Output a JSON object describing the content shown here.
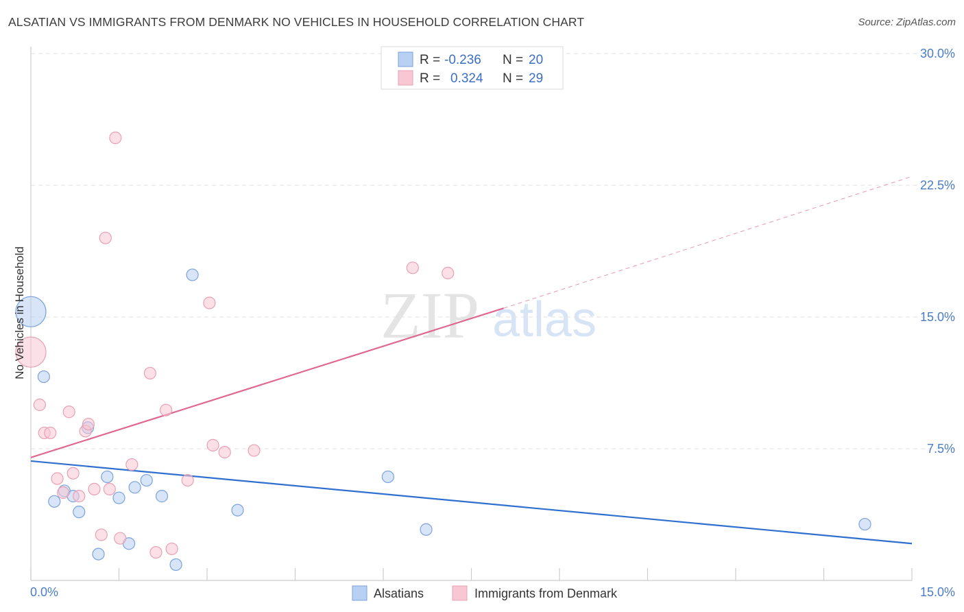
{
  "title": "ALSATIAN VS IMMIGRANTS FROM DENMARK NO VEHICLES IN HOUSEHOLD CORRELATION CHART",
  "source": "Source: ZipAtlas.com",
  "watermark": {
    "zip": "ZIP",
    "atlas": "atlas"
  },
  "colors": {
    "blue_fill": "#b8d0f2",
    "blue_stroke": "#7aa2dd",
    "blue_line": "#2f6fd0",
    "pink_fill": "#f7c7d3",
    "pink_stroke": "#e8a0b4",
    "pink_line": "#e06890",
    "tick_text": "#4a7cc7"
  },
  "legend": {
    "r_label": "R =",
    "n_label": "N =",
    "rows": [
      {
        "series": "Alsatians",
        "r": "-0.236",
        "n": "20"
      },
      {
        "series": "Immigrants from Denmark",
        "r": "0.324",
        "n": "29"
      }
    ]
  },
  "chart_data": {
    "type": "scatter",
    "title": "ALSATIAN VS IMMIGRANTS FROM DENMARK NO VEHICLES IN HOUSEHOLD CORRELATION CHART",
    "xlabel": "",
    "ylabel": "No Vehicles in Household",
    "xlim": [
      0,
      15
    ],
    "ylim": [
      0,
      30
    ],
    "x_tick_labels": [
      "0.0%",
      "15.0%"
    ],
    "y_ticks": [
      7.5,
      15.0,
      22.5,
      30.0
    ],
    "y_tick_labels": [
      "7.5%",
      "15.0%",
      "22.5%",
      "30.0%"
    ],
    "grid": true,
    "legend_position": "top-center",
    "series": [
      {
        "name": "Alsatians",
        "color": "#b8d0f2",
        "points": [
          {
            "x": 0.0,
            "y": 15.3,
            "size": "large"
          },
          {
            "x": 0.22,
            "y": 11.6
          },
          {
            "x": 0.4,
            "y": 4.5
          },
          {
            "x": 0.57,
            "y": 5.1
          },
          {
            "x": 0.72,
            "y": 4.8
          },
          {
            "x": 0.82,
            "y": 3.9
          },
          {
            "x": 0.97,
            "y": 8.7
          },
          {
            "x": 1.15,
            "y": 1.5
          },
          {
            "x": 1.3,
            "y": 5.9
          },
          {
            "x": 1.5,
            "y": 4.7
          },
          {
            "x": 1.67,
            "y": 2.1
          },
          {
            "x": 1.77,
            "y": 5.3
          },
          {
            "x": 1.97,
            "y": 5.7
          },
          {
            "x": 2.23,
            "y": 4.8
          },
          {
            "x": 2.47,
            "y": 0.9
          },
          {
            "x": 2.75,
            "y": 17.4
          },
          {
            "x": 3.52,
            "y": 4.0
          },
          {
            "x": 6.08,
            "y": 5.9
          },
          {
            "x": 6.73,
            "y": 2.9
          },
          {
            "x": 14.2,
            "y": 3.2
          }
        ],
        "trend": {
          "x": [
            0,
            15
          ],
          "y": [
            6.8,
            2.1
          ]
        }
      },
      {
        "name": "Immigrants from Denmark",
        "color": "#f7c7d3",
        "points": [
          {
            "x": 0.0,
            "y": 13.0,
            "size": "large"
          },
          {
            "x": 0.15,
            "y": 10.0
          },
          {
            "x": 0.23,
            "y": 8.4
          },
          {
            "x": 0.33,
            "y": 8.4
          },
          {
            "x": 0.45,
            "y": 5.8
          },
          {
            "x": 0.55,
            "y": 5.0
          },
          {
            "x": 0.65,
            "y": 9.6
          },
          {
            "x": 0.72,
            "y": 6.1
          },
          {
            "x": 0.82,
            "y": 4.8
          },
          {
            "x": 0.93,
            "y": 8.5
          },
          {
            "x": 0.98,
            "y": 8.9
          },
          {
            "x": 1.08,
            "y": 5.2
          },
          {
            "x": 1.2,
            "y": 2.6
          },
          {
            "x": 1.27,
            "y": 19.5
          },
          {
            "x": 1.34,
            "y": 5.2
          },
          {
            "x": 1.44,
            "y": 25.2
          },
          {
            "x": 1.52,
            "y": 2.4
          },
          {
            "x": 1.72,
            "y": 6.6
          },
          {
            "x": 2.03,
            "y": 11.8
          },
          {
            "x": 2.13,
            "y": 1.6
          },
          {
            "x": 2.3,
            "y": 9.7
          },
          {
            "x": 2.4,
            "y": 1.8
          },
          {
            "x": 2.67,
            "y": 5.7
          },
          {
            "x": 3.04,
            "y": 15.8
          },
          {
            "x": 3.1,
            "y": 7.7
          },
          {
            "x": 3.3,
            "y": 7.3
          },
          {
            "x": 3.8,
            "y": 7.4
          },
          {
            "x": 6.5,
            "y": 17.8
          },
          {
            "x": 7.1,
            "y": 17.5
          }
        ],
        "trend": {
          "x": [
            0,
            8.05
          ],
          "y": [
            7.0,
            15.5
          ]
        },
        "trend_extension": {
          "x": [
            8.05,
            15
          ],
          "y": [
            15.5,
            23.0
          ]
        }
      }
    ]
  }
}
